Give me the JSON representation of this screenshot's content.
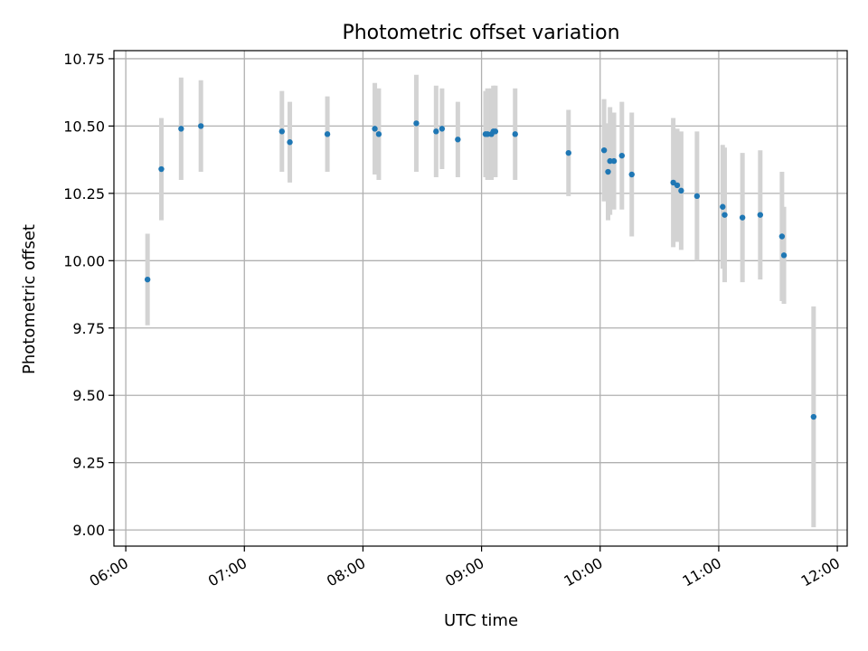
{
  "colors": {
    "points": "#1f77b4",
    "error_bars": "#d3d3d3"
  },
  "chart_data": {
    "type": "scatter",
    "title": "Photometric offset variation",
    "xlabel": "UTC time",
    "ylabel": "Photometric offset",
    "xlim": [
      "05:54",
      "12:05"
    ],
    "ylim": [
      8.94,
      10.78
    ],
    "x_ticks": [
      "06:00",
      "07:00",
      "08:00",
      "09:00",
      "10:00",
      "11:00",
      "12:00"
    ],
    "y_ticks": [
      "9.00",
      "9.25",
      "9.50",
      "9.75",
      "10.00",
      "10.25",
      "10.50",
      "10.75"
    ],
    "grid": true,
    "points": [
      {
        "x": "06:11",
        "y": 9.93,
        "err": 0.17
      },
      {
        "x": "06:18",
        "y": 10.34,
        "err": 0.19
      },
      {
        "x": "06:28",
        "y": 10.49,
        "err": 0.19
      },
      {
        "x": "06:38",
        "y": 10.5,
        "err": 0.17
      },
      {
        "x": "07:19",
        "y": 10.48,
        "err": 0.15
      },
      {
        "x": "07:23",
        "y": 10.44,
        "err": 0.15
      },
      {
        "x": "07:42",
        "y": 10.47,
        "err": 0.14
      },
      {
        "x": "08:06",
        "y": 10.49,
        "err": 0.17
      },
      {
        "x": "08:08",
        "y": 10.47,
        "err": 0.17
      },
      {
        "x": "08:27",
        "y": 10.51,
        "err": 0.18
      },
      {
        "x": "08:37",
        "y": 10.48,
        "err": 0.17
      },
      {
        "x": "08:40",
        "y": 10.49,
        "err": 0.15
      },
      {
        "x": "08:48",
        "y": 10.45,
        "err": 0.14
      },
      {
        "x": "09:02",
        "y": 10.47,
        "err": 0.16
      },
      {
        "x": "09:03",
        "y": 10.47,
        "err": 0.17
      },
      {
        "x": "09:05",
        "y": 10.47,
        "err": 0.17
      },
      {
        "x": "09:06",
        "y": 10.48,
        "err": 0.17
      },
      {
        "x": "09:07",
        "y": 10.48,
        "err": 0.17
      },
      {
        "x": "09:17",
        "y": 10.47,
        "err": 0.17
      },
      {
        "x": "09:44",
        "y": 10.4,
        "err": 0.16
      },
      {
        "x": "10:02",
        "y": 10.41,
        "err": 0.19
      },
      {
        "x": "10:04",
        "y": 10.33,
        "err": 0.18
      },
      {
        "x": "10:05",
        "y": 10.37,
        "err": 0.2
      },
      {
        "x": "10:07",
        "y": 10.37,
        "err": 0.18
      },
      {
        "x": "10:11",
        "y": 10.39,
        "err": 0.2
      },
      {
        "x": "10:16",
        "y": 10.32,
        "err": 0.23
      },
      {
        "x": "10:37",
        "y": 10.29,
        "err": 0.24
      },
      {
        "x": "10:39",
        "y": 10.28,
        "err": 0.21
      },
      {
        "x": "10:41",
        "y": 10.26,
        "err": 0.22
      },
      {
        "x": "10:49",
        "y": 10.24,
        "err": 0.24
      },
      {
        "x": "11:02",
        "y": 10.2,
        "err": 0.23
      },
      {
        "x": "11:03",
        "y": 10.17,
        "err": 0.25
      },
      {
        "x": "11:12",
        "y": 10.16,
        "err": 0.24
      },
      {
        "x": "11:21",
        "y": 10.17,
        "err": 0.24
      },
      {
        "x": "11:32",
        "y": 10.09,
        "err": 0.24
      },
      {
        "x": "11:33",
        "y": 10.02,
        "err": 0.18
      },
      {
        "x": "11:48",
        "y": 9.42,
        "err": 0.41
      }
    ]
  }
}
